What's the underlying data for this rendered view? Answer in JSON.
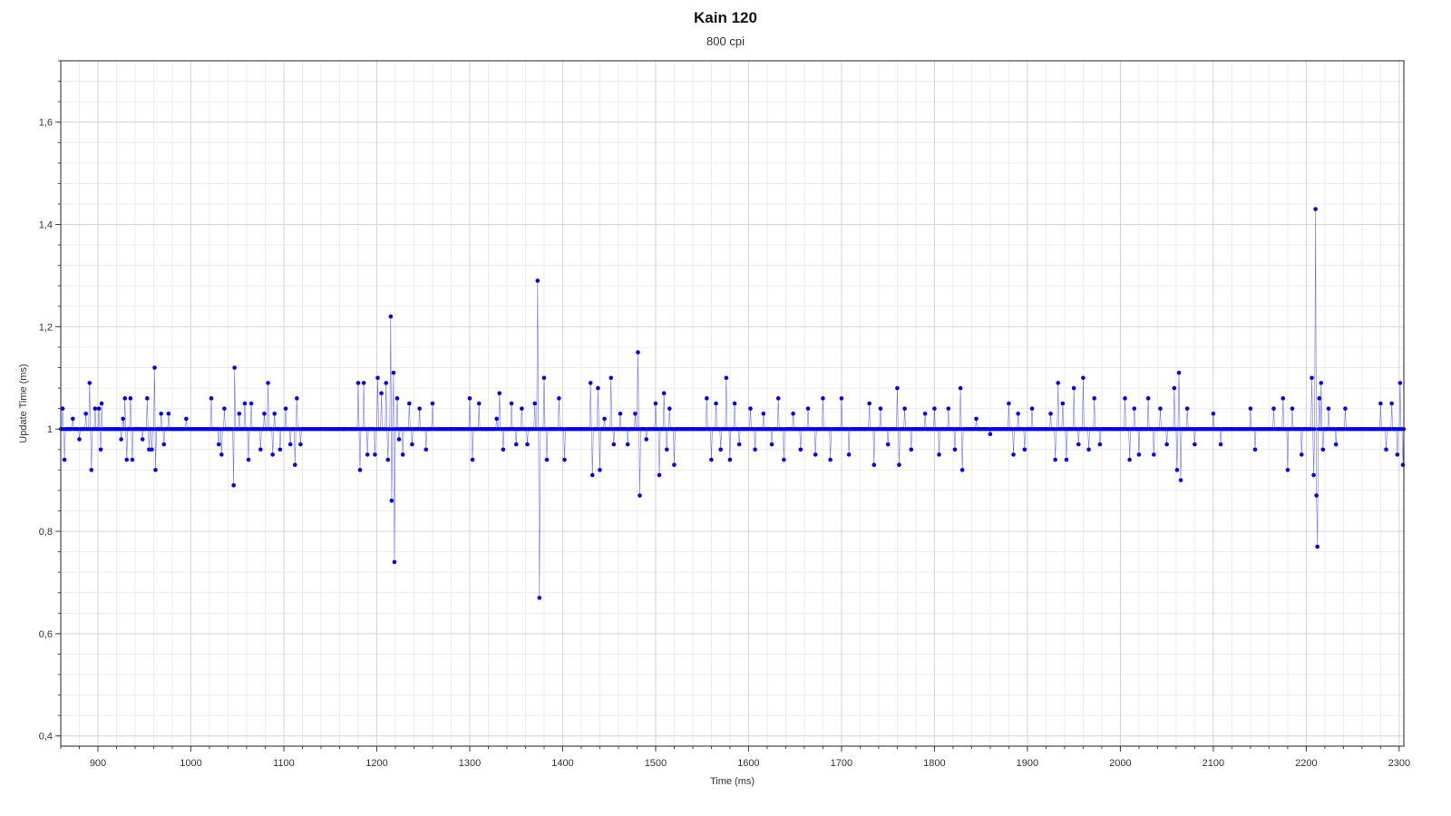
{
  "chart_data": {
    "type": "scatter",
    "title": "Kain 120",
    "subtitle": "800 cpi",
    "xlabel": "Time (ms)",
    "ylabel": "Update Time (ms)",
    "xlim": [
      860,
      2305
    ],
    "ylim": [
      0.38,
      1.72
    ],
    "x_ticks": [
      900,
      1000,
      1100,
      1200,
      1300,
      1400,
      1500,
      1600,
      1700,
      1800,
      1900,
      2000,
      2100,
      2200,
      2300
    ],
    "y_ticks": [
      0.4,
      0.6,
      0.8,
      1.0,
      1.2,
      1.4,
      1.6
    ],
    "x_tick_labels": [
      "900",
      "1000",
      "1100",
      "1200",
      "1300",
      "1400",
      "1500",
      "1600",
      "1700",
      "1800",
      "1900",
      "2000",
      "2100",
      "2200",
      "2300"
    ],
    "y_tick_labels": [
      "0,4",
      "0,6",
      "0,8",
      "1",
      "1,2",
      "1,4",
      "1,6"
    ],
    "grid": true,
    "series": [
      {
        "color": "#0000ff",
        "marker": "dot",
        "baseline": 1.0,
        "x_step": 1,
        "points": [
          [
            862,
            1.04
          ],
          [
            864,
            0.94
          ],
          [
            873,
            1.02
          ],
          [
            880,
            0.98
          ],
          [
            887,
            1.03
          ],
          [
            891,
            1.09
          ],
          [
            893,
            0.92
          ],
          [
            897,
            1.04
          ],
          [
            901,
            1.04
          ],
          [
            904,
            1.05
          ],
          [
            903,
            0.96
          ],
          [
            925,
            0.98
          ],
          [
            927,
            1.02
          ],
          [
            929,
            1.06
          ],
          [
            931,
            0.94
          ],
          [
            935,
            1.06
          ],
          [
            937,
            0.94
          ],
          [
            948,
            0.98
          ],
          [
            953,
            1.06
          ],
          [
            955,
            0.96
          ],
          [
            958,
            0.96
          ],
          [
            961,
            1.12
          ],
          [
            962,
            0.92
          ],
          [
            968,
            1.03
          ],
          [
            971,
            0.97
          ],
          [
            976,
            1.03
          ],
          [
            995,
            1.02
          ],
          [
            1022,
            1.06
          ],
          [
            1030,
            0.97
          ],
          [
            1033,
            0.95
          ],
          [
            1036,
            1.04
          ],
          [
            1046,
            0.89
          ],
          [
            1047,
            1.12
          ],
          [
            1052,
            1.03
          ],
          [
            1058,
            1.05
          ],
          [
            1062,
            0.94
          ],
          [
            1065,
            1.05
          ],
          [
            1075,
            0.96
          ],
          [
            1079,
            1.03
          ],
          [
            1083,
            1.09
          ],
          [
            1088,
            0.95
          ],
          [
            1090,
            1.03
          ],
          [
            1096,
            0.96
          ],
          [
            1102,
            1.04
          ],
          [
            1107,
            0.97
          ],
          [
            1112,
            0.93
          ],
          [
            1114,
            1.06
          ],
          [
            1118,
            0.97
          ],
          [
            1165,
            1.0
          ],
          [
            1180,
            1.09
          ],
          [
            1182,
            0.92
          ],
          [
            1186,
            1.09
          ],
          [
            1190,
            0.95
          ],
          [
            1198,
            0.95
          ],
          [
            1201,
            1.1
          ],
          [
            1205,
            1.07
          ],
          [
            1210,
            1.09
          ],
          [
            1212,
            0.94
          ],
          [
            1215,
            1.22
          ],
          [
            1216,
            0.86
          ],
          [
            1218,
            1.11
          ],
          [
            1219,
            0.74
          ],
          [
            1222,
            1.06
          ],
          [
            1224,
            0.98
          ],
          [
            1228,
            0.95
          ],
          [
            1235,
            1.05
          ],
          [
            1238,
            0.97
          ],
          [
            1246,
            1.04
          ],
          [
            1253,
            0.96
          ],
          [
            1260,
            1.05
          ],
          [
            1300,
            1.06
          ],
          [
            1303,
            0.94
          ],
          [
            1310,
            1.05
          ],
          [
            1329,
            1.02
          ],
          [
            1332,
            1.07
          ],
          [
            1336,
            0.96
          ],
          [
            1345,
            1.05
          ],
          [
            1350,
            0.97
          ],
          [
            1356,
            1.04
          ],
          [
            1362,
            0.97
          ],
          [
            1370,
            1.05
          ],
          [
            1373,
            1.29
          ],
          [
            1375,
            0.67
          ],
          [
            1380,
            1.1
          ],
          [
            1383,
            0.94
          ],
          [
            1396,
            1.06
          ],
          [
            1402,
            0.94
          ],
          [
            1430,
            1.09
          ],
          [
            1432,
            0.91
          ],
          [
            1438,
            1.08
          ],
          [
            1440,
            0.92
          ],
          [
            1445,
            1.02
          ],
          [
            1452,
            1.1
          ],
          [
            1455,
            0.97
          ],
          [
            1462,
            1.03
          ],
          [
            1470,
            0.97
          ],
          [
            1478,
            1.03
          ],
          [
            1481,
            1.15
          ],
          [
            1483,
            0.87
          ],
          [
            1490,
            0.98
          ],
          [
            1500,
            1.05
          ],
          [
            1504,
            0.91
          ],
          [
            1509,
            1.07
          ],
          [
            1512,
            0.96
          ],
          [
            1515,
            1.04
          ],
          [
            1520,
            0.93
          ],
          [
            1555,
            1.06
          ],
          [
            1560,
            0.94
          ],
          [
            1565,
            1.05
          ],
          [
            1570,
            0.96
          ],
          [
            1576,
            1.1
          ],
          [
            1580,
            0.94
          ],
          [
            1585,
            1.05
          ],
          [
            1590,
            0.97
          ],
          [
            1602,
            1.04
          ],
          [
            1607,
            0.96
          ],
          [
            1616,
            1.03
          ],
          [
            1625,
            0.97
          ],
          [
            1632,
            1.06
          ],
          [
            1638,
            0.94
          ],
          [
            1648,
            1.03
          ],
          [
            1656,
            0.96
          ],
          [
            1664,
            1.04
          ],
          [
            1672,
            0.95
          ],
          [
            1680,
            1.06
          ],
          [
            1688,
            0.94
          ],
          [
            1700,
            1.06
          ],
          [
            1708,
            0.95
          ],
          [
            1730,
            1.05
          ],
          [
            1735,
            0.93
          ],
          [
            1742,
            1.04
          ],
          [
            1750,
            0.97
          ],
          [
            1760,
            1.08
          ],
          [
            1762,
            0.93
          ],
          [
            1768,
            1.04
          ],
          [
            1775,
            0.96
          ],
          [
            1790,
            1.03
          ],
          [
            1800,
            1.04
          ],
          [
            1805,
            0.95
          ],
          [
            1815,
            1.04
          ],
          [
            1822,
            0.96
          ],
          [
            1828,
            1.08
          ],
          [
            1830,
            0.92
          ],
          [
            1845,
            1.02
          ],
          [
            1860,
            0.99
          ],
          [
            1880,
            1.05
          ],
          [
            1885,
            0.95
          ],
          [
            1890,
            1.03
          ],
          [
            1897,
            0.96
          ],
          [
            1905,
            1.04
          ],
          [
            1925,
            1.03
          ],
          [
            1930,
            0.94
          ],
          [
            1933,
            1.09
          ],
          [
            1938,
            1.05
          ],
          [
            1942,
            0.94
          ],
          [
            1950,
            1.08
          ],
          [
            1955,
            0.97
          ],
          [
            1960,
            1.1
          ],
          [
            1966,
            0.96
          ],
          [
            1972,
            1.06
          ],
          [
            1978,
            0.97
          ],
          [
            2005,
            1.06
          ],
          [
            2010,
            0.94
          ],
          [
            2015,
            1.04
          ],
          [
            2020,
            0.95
          ],
          [
            2030,
            1.06
          ],
          [
            2036,
            0.95
          ],
          [
            2043,
            1.04
          ],
          [
            2050,
            0.97
          ],
          [
            2058,
            1.08
          ],
          [
            2061,
            0.92
          ],
          [
            2063,
            1.11
          ],
          [
            2065,
            0.9
          ],
          [
            2072,
            1.04
          ],
          [
            2080,
            0.97
          ],
          [
            2100,
            1.03
          ],
          [
            2108,
            0.97
          ],
          [
            2140,
            1.04
          ],
          [
            2145,
            0.96
          ],
          [
            2165,
            1.04
          ],
          [
            2175,
            1.06
          ],
          [
            2180,
            0.92
          ],
          [
            2185,
            1.04
          ],
          [
            2195,
            0.95
          ],
          [
            2206,
            1.1
          ],
          [
            2208,
            0.91
          ],
          [
            2210,
            1.43
          ],
          [
            2211,
            0.87
          ],
          [
            2212,
            0.77
          ],
          [
            2214,
            1.06
          ],
          [
            2216,
            1.09
          ],
          [
            2218,
            0.96
          ],
          [
            2224,
            1.04
          ],
          [
            2232,
            0.97
          ],
          [
            2242,
            1.04
          ],
          [
            2280,
            1.05
          ],
          [
            2286,
            0.96
          ],
          [
            2292,
            1.05
          ],
          [
            2298,
            0.95
          ],
          [
            2301,
            1.09
          ],
          [
            2304,
            0.93
          ]
        ]
      }
    ]
  }
}
